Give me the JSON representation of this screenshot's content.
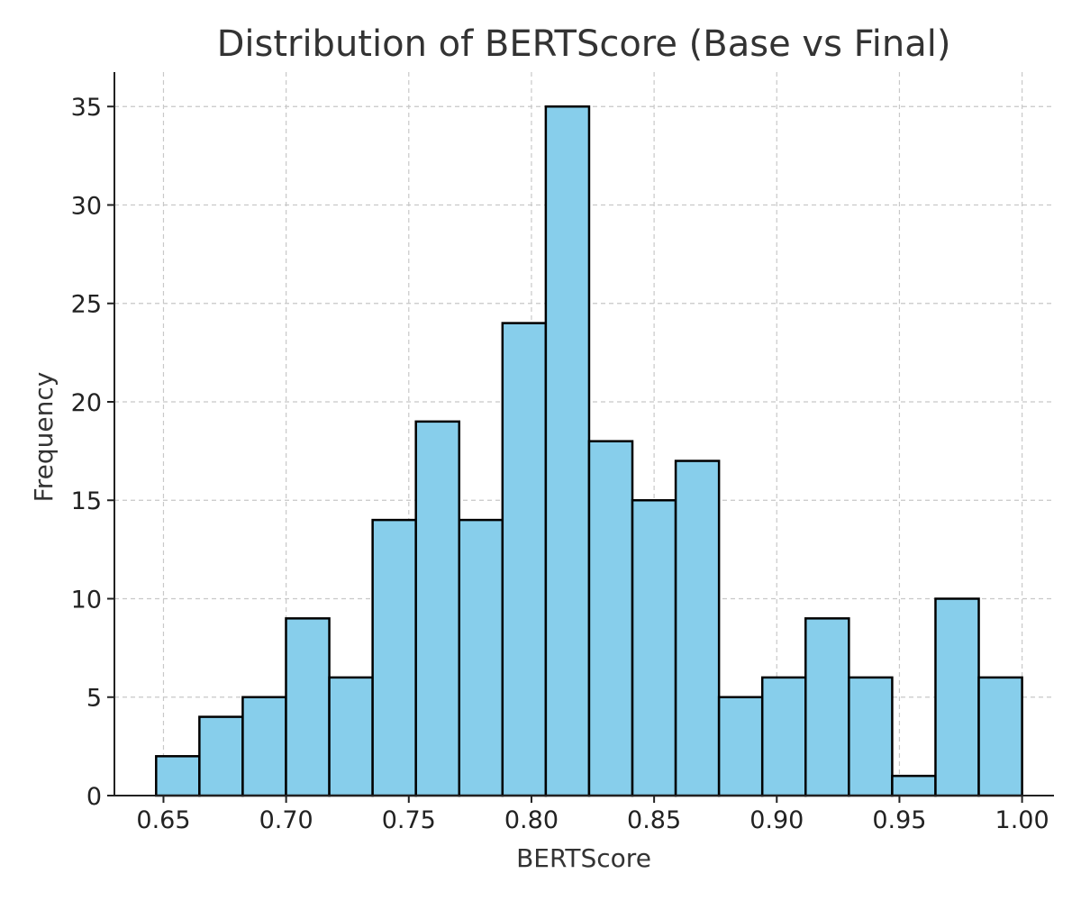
{
  "chart_data": {
    "type": "bar",
    "title": "Distribution of BERTScore (Base vs Final)",
    "xlabel": "BERTScore",
    "ylabel": "Frequency",
    "xlim": [
      0.63,
      1.013
    ],
    "ylim": [
      0,
      36.75
    ],
    "grid": true,
    "bar_color": "#87CEEB",
    "edge_color": "#000000",
    "bin_start": 0.647,
    "bin_end": 1.0,
    "counts": [
      2,
      4,
      5,
      9,
      6,
      14,
      19,
      14,
      24,
      35,
      18,
      15,
      17,
      5,
      6,
      9,
      6,
      1,
      10,
      6
    ],
    "x_ticks": [
      {
        "value": 0.65,
        "label": "0.65"
      },
      {
        "value": 0.7,
        "label": "0.70"
      },
      {
        "value": 0.75,
        "label": "0.75"
      },
      {
        "value": 0.8,
        "label": "0.80"
      },
      {
        "value": 0.85,
        "label": "0.85"
      },
      {
        "value": 0.9,
        "label": "0.90"
      },
      {
        "value": 0.95,
        "label": "0.95"
      },
      {
        "value": 1.0,
        "label": "1.00"
      }
    ],
    "y_ticks": [
      {
        "value": 0,
        "label": "0"
      },
      {
        "value": 5,
        "label": "5"
      },
      {
        "value": 10,
        "label": "10"
      },
      {
        "value": 15,
        "label": "15"
      },
      {
        "value": 20,
        "label": "20"
      },
      {
        "value": 25,
        "label": "25"
      },
      {
        "value": 30,
        "label": "30"
      },
      {
        "value": 35,
        "label": "35"
      }
    ]
  }
}
